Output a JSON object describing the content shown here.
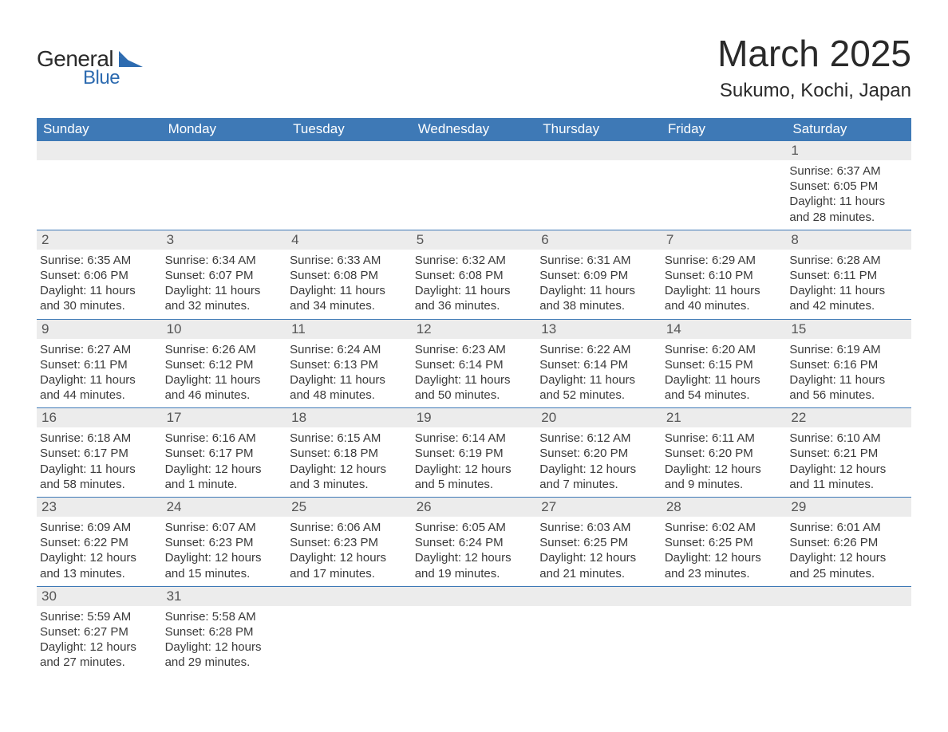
{
  "brand": {
    "general": "General",
    "blue": "Blue"
  },
  "title": "March 2025",
  "location": "Sukumo, Kochi, Japan",
  "colors": {
    "header_bg": "#3e79b6",
    "header_text": "#ffffff",
    "daynum_bg": "#ececec",
    "row_border": "#3e79b6",
    "logo_blue": "#2d6bb0",
    "text": "#2a2a2a"
  },
  "typography": {
    "title_fontsize": 46,
    "location_fontsize": 24,
    "header_fontsize": 17,
    "body_fontsize": 15
  },
  "dayHeaders": [
    "Sunday",
    "Monday",
    "Tuesday",
    "Wednesday",
    "Thursday",
    "Friday",
    "Saturday"
  ],
  "weeks": [
    [
      null,
      null,
      null,
      null,
      null,
      null,
      {
        "n": "1",
        "sunrise": "Sunrise: 6:37 AM",
        "sunset": "Sunset: 6:05 PM",
        "daylight": "Daylight: 11 hours and 28 minutes."
      }
    ],
    [
      {
        "n": "2",
        "sunrise": "Sunrise: 6:35 AM",
        "sunset": "Sunset: 6:06 PM",
        "daylight": "Daylight: 11 hours and 30 minutes."
      },
      {
        "n": "3",
        "sunrise": "Sunrise: 6:34 AM",
        "sunset": "Sunset: 6:07 PM",
        "daylight": "Daylight: 11 hours and 32 minutes."
      },
      {
        "n": "4",
        "sunrise": "Sunrise: 6:33 AM",
        "sunset": "Sunset: 6:08 PM",
        "daylight": "Daylight: 11 hours and 34 minutes."
      },
      {
        "n": "5",
        "sunrise": "Sunrise: 6:32 AM",
        "sunset": "Sunset: 6:08 PM",
        "daylight": "Daylight: 11 hours and 36 minutes."
      },
      {
        "n": "6",
        "sunrise": "Sunrise: 6:31 AM",
        "sunset": "Sunset: 6:09 PM",
        "daylight": "Daylight: 11 hours and 38 minutes."
      },
      {
        "n": "7",
        "sunrise": "Sunrise: 6:29 AM",
        "sunset": "Sunset: 6:10 PM",
        "daylight": "Daylight: 11 hours and 40 minutes."
      },
      {
        "n": "8",
        "sunrise": "Sunrise: 6:28 AM",
        "sunset": "Sunset: 6:11 PM",
        "daylight": "Daylight: 11 hours and 42 minutes."
      }
    ],
    [
      {
        "n": "9",
        "sunrise": "Sunrise: 6:27 AM",
        "sunset": "Sunset: 6:11 PM",
        "daylight": "Daylight: 11 hours and 44 minutes."
      },
      {
        "n": "10",
        "sunrise": "Sunrise: 6:26 AM",
        "sunset": "Sunset: 6:12 PM",
        "daylight": "Daylight: 11 hours and 46 minutes."
      },
      {
        "n": "11",
        "sunrise": "Sunrise: 6:24 AM",
        "sunset": "Sunset: 6:13 PM",
        "daylight": "Daylight: 11 hours and 48 minutes."
      },
      {
        "n": "12",
        "sunrise": "Sunrise: 6:23 AM",
        "sunset": "Sunset: 6:14 PM",
        "daylight": "Daylight: 11 hours and 50 minutes."
      },
      {
        "n": "13",
        "sunrise": "Sunrise: 6:22 AM",
        "sunset": "Sunset: 6:14 PM",
        "daylight": "Daylight: 11 hours and 52 minutes."
      },
      {
        "n": "14",
        "sunrise": "Sunrise: 6:20 AM",
        "sunset": "Sunset: 6:15 PM",
        "daylight": "Daylight: 11 hours and 54 minutes."
      },
      {
        "n": "15",
        "sunrise": "Sunrise: 6:19 AM",
        "sunset": "Sunset: 6:16 PM",
        "daylight": "Daylight: 11 hours and 56 minutes."
      }
    ],
    [
      {
        "n": "16",
        "sunrise": "Sunrise: 6:18 AM",
        "sunset": "Sunset: 6:17 PM",
        "daylight": "Daylight: 11 hours and 58 minutes."
      },
      {
        "n": "17",
        "sunrise": "Sunrise: 6:16 AM",
        "sunset": "Sunset: 6:17 PM",
        "daylight": "Daylight: 12 hours and 1 minute."
      },
      {
        "n": "18",
        "sunrise": "Sunrise: 6:15 AM",
        "sunset": "Sunset: 6:18 PM",
        "daylight": "Daylight: 12 hours and 3 minutes."
      },
      {
        "n": "19",
        "sunrise": "Sunrise: 6:14 AM",
        "sunset": "Sunset: 6:19 PM",
        "daylight": "Daylight: 12 hours and 5 minutes."
      },
      {
        "n": "20",
        "sunrise": "Sunrise: 6:12 AM",
        "sunset": "Sunset: 6:20 PM",
        "daylight": "Daylight: 12 hours and 7 minutes."
      },
      {
        "n": "21",
        "sunrise": "Sunrise: 6:11 AM",
        "sunset": "Sunset: 6:20 PM",
        "daylight": "Daylight: 12 hours and 9 minutes."
      },
      {
        "n": "22",
        "sunrise": "Sunrise: 6:10 AM",
        "sunset": "Sunset: 6:21 PM",
        "daylight": "Daylight: 12 hours and 11 minutes."
      }
    ],
    [
      {
        "n": "23",
        "sunrise": "Sunrise: 6:09 AM",
        "sunset": "Sunset: 6:22 PM",
        "daylight": "Daylight: 12 hours and 13 minutes."
      },
      {
        "n": "24",
        "sunrise": "Sunrise: 6:07 AM",
        "sunset": "Sunset: 6:23 PM",
        "daylight": "Daylight: 12 hours and 15 minutes."
      },
      {
        "n": "25",
        "sunrise": "Sunrise: 6:06 AM",
        "sunset": "Sunset: 6:23 PM",
        "daylight": "Daylight: 12 hours and 17 minutes."
      },
      {
        "n": "26",
        "sunrise": "Sunrise: 6:05 AM",
        "sunset": "Sunset: 6:24 PM",
        "daylight": "Daylight: 12 hours and 19 minutes."
      },
      {
        "n": "27",
        "sunrise": "Sunrise: 6:03 AM",
        "sunset": "Sunset: 6:25 PM",
        "daylight": "Daylight: 12 hours and 21 minutes."
      },
      {
        "n": "28",
        "sunrise": "Sunrise: 6:02 AM",
        "sunset": "Sunset: 6:25 PM",
        "daylight": "Daylight: 12 hours and 23 minutes."
      },
      {
        "n": "29",
        "sunrise": "Sunrise: 6:01 AM",
        "sunset": "Sunset: 6:26 PM",
        "daylight": "Daylight: 12 hours and 25 minutes."
      }
    ],
    [
      {
        "n": "30",
        "sunrise": "Sunrise: 5:59 AM",
        "sunset": "Sunset: 6:27 PM",
        "daylight": "Daylight: 12 hours and 27 minutes."
      },
      {
        "n": "31",
        "sunrise": "Sunrise: 5:58 AM",
        "sunset": "Sunset: 6:28 PM",
        "daylight": "Daylight: 12 hours and 29 minutes."
      },
      null,
      null,
      null,
      null,
      null
    ]
  ]
}
